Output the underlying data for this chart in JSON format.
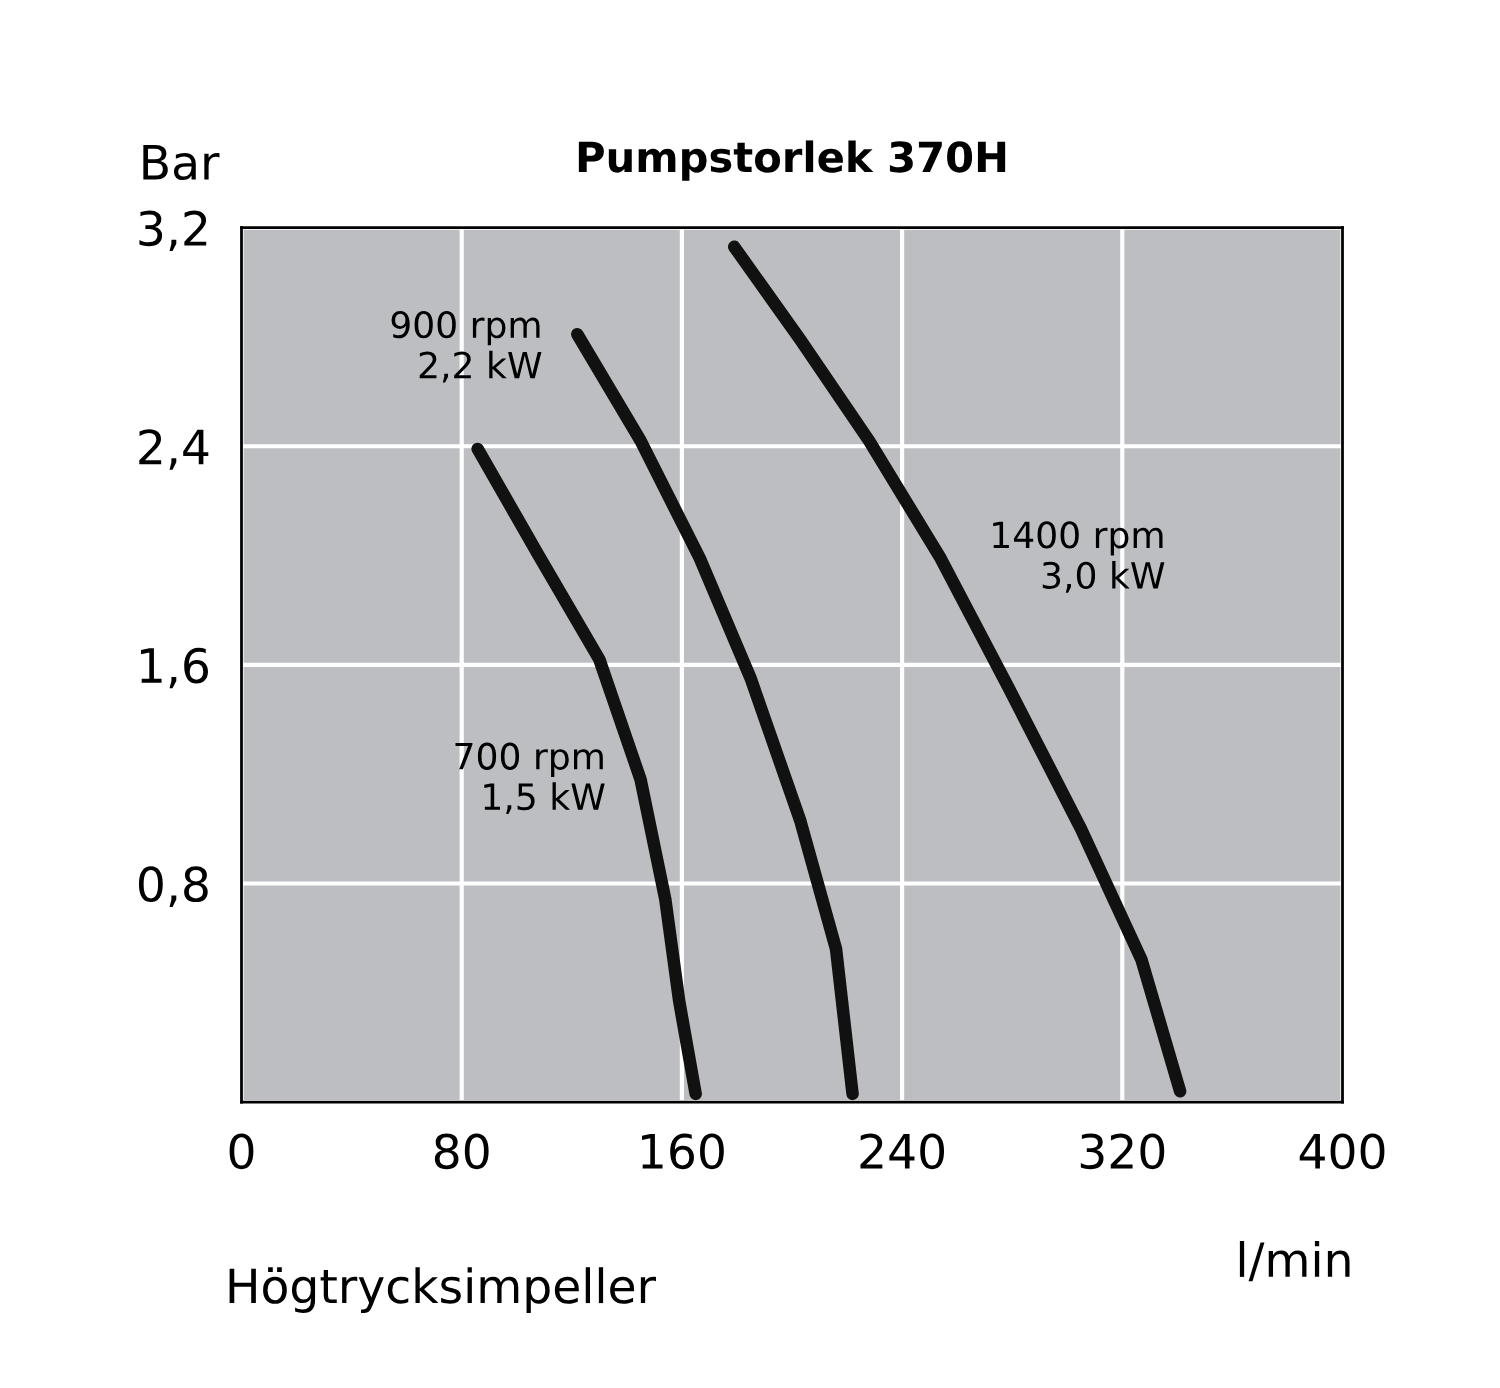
{
  "chart_data": {
    "type": "line",
    "title": "Pumpstorlek 370H",
    "ylabel": "Bar",
    "xlabel": "l/min",
    "annotations": [
      "Högtrycksimpeller"
    ],
    "series": [
      {
        "name": "700 rpm\n1,5 kW",
        "color": "#111111",
        "x": [
          85.8,
          108,
          130,
          145,
          154,
          159,
          165
        ],
        "values": [
          2.39,
          2.0,
          1.62,
          1.18,
          0.74,
          0.37,
          0.03
        ]
      },
      {
        "name": "900 rpm\n2,2 kW",
        "color": "#111111",
        "x": [
          122,
          145,
          166.5,
          185,
          203,
          216,
          222
        ],
        "values": [
          2.81,
          2.42,
          1.99,
          1.55,
          1.03,
          0.56,
          0.03
        ]
      },
      {
        "name": "1400 rpm\n3,0 kW",
        "color": "#111111",
        "x": [
          179,
          203,
          228,
          254,
          279,
          305,
          327,
          341
        ],
        "values": [
          3.13,
          2.79,
          2.42,
          1.99,
          1.51,
          1.0,
          0.52,
          0.04
        ]
      }
    ],
    "xlim": [
      0,
      400
    ],
    "xticks": [
      0,
      80,
      160,
      240,
      320,
      400
    ],
    "ylim": [
      0,
      3.2
    ],
    "yticks": [
      {
        "value": 0,
        "label": null
      },
      {
        "value": 0.8,
        "label": "0,8"
      },
      {
        "value": 1.6,
        "label": "1,6"
      },
      {
        "value": 2.4,
        "label": "2,4"
      },
      {
        "value": 3.2,
        "label": "3,2"
      }
    ],
    "grid": true,
    "legend": false,
    "line_style": "solid"
  }
}
